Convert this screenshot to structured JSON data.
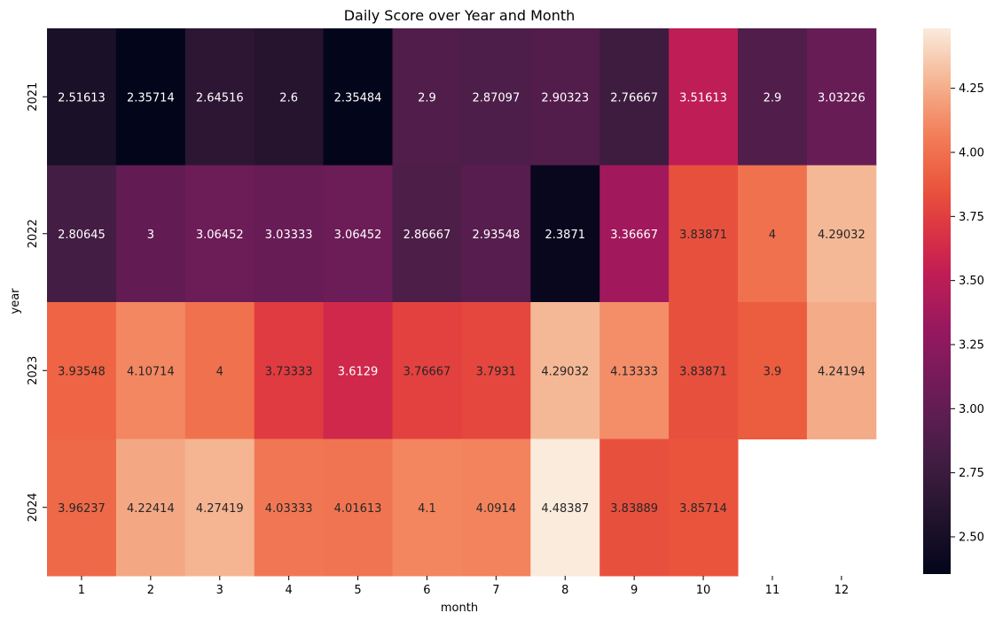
{
  "chart_data": {
    "type": "heatmap",
    "title": "Daily Score over Year and Month",
    "xlabel": "month",
    "ylabel": "year",
    "x_categories": [
      "1",
      "2",
      "3",
      "4",
      "5",
      "6",
      "7",
      "8",
      "9",
      "10",
      "11",
      "12"
    ],
    "y_categories": [
      "2021",
      "2022",
      "2023",
      "2024"
    ],
    "cell_labels": [
      [
        "2.51613",
        "2.35714",
        "2.64516",
        "2.6",
        "2.35484",
        "2.9",
        "2.87097",
        "2.90323",
        "2.76667",
        "3.51613",
        "2.9",
        "3.03226"
      ],
      [
        "2.80645",
        "3",
        "3.06452",
        "3.03333",
        "3.06452",
        "2.86667",
        "2.93548",
        "2.3871",
        "3.36667",
        "3.83871",
        "4",
        "4.29032"
      ],
      [
        "3.93548",
        "4.10714",
        "4",
        "3.73333",
        "3.6129",
        "3.76667",
        "3.7931",
        "4.29032",
        "4.13333",
        "3.83871",
        "3.9",
        "4.24194"
      ],
      [
        "3.96237",
        "4.22414",
        "4.27419",
        "4.03333",
        "4.01613",
        "4.1",
        "4.0914",
        "4.48387",
        "3.83889",
        "3.85714",
        "",
        ""
      ]
    ],
    "values": [
      [
        2.51613,
        2.35714,
        2.64516,
        2.6,
        2.35484,
        2.9,
        2.87097,
        2.90323,
        2.76667,
        3.51613,
        2.9,
        3.03226
      ],
      [
        2.80645,
        3,
        3.06452,
        3.03333,
        3.06452,
        2.86667,
        2.93548,
        2.3871,
        3.36667,
        3.83871,
        4,
        4.29032
      ],
      [
        3.93548,
        4.10714,
        4,
        3.73333,
        3.6129,
        3.76667,
        3.7931,
        4.29032,
        4.13333,
        3.83871,
        3.9,
        4.24194
      ],
      [
        3.96237,
        4.22414,
        4.27419,
        4.03333,
        4.01613,
        4.1,
        4.0914,
        4.48387,
        3.83889,
        3.85714,
        null,
        null
      ]
    ],
    "colorbar": {
      "min": 2.35484,
      "max": 4.48387,
      "ticks": [
        "2.50",
        "2.75",
        "3.00",
        "3.25",
        "3.50",
        "3.75",
        "4.00",
        "4.25"
      ],
      "colormap": "rocket"
    }
  }
}
